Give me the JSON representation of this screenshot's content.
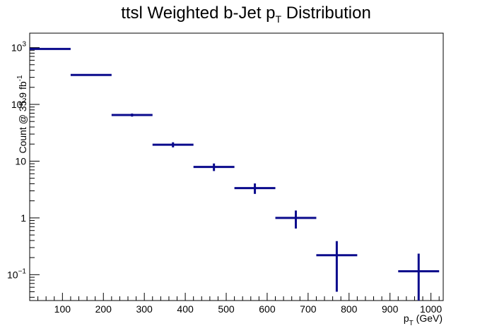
{
  "chart_data": {
    "type": "scatter",
    "title": "ttsl Weighted b-Jet p",
    "title_sub": "T",
    "title_tail": " Distribution",
    "xlabel": "p",
    "xlabel_sub": "T",
    "xlabel_tail": " (GeV)",
    "ylabel": "Count @ 35.9 fb",
    "ylabel_sup": "-1",
    "xlim": [
      20,
      1030
    ],
    "ylim": [
      0.035,
      1800
    ],
    "y_scale": "log",
    "grid": false,
    "legend": "none",
    "color": "#0a0a8c",
    "x_ticks": [
      100,
      200,
      300,
      400,
      500,
      600,
      700,
      800,
      900,
      1000
    ],
    "y_ticks": [
      {
        "value": 0.1,
        "base": "10",
        "exp": "−1"
      },
      {
        "value": 1,
        "base": "1",
        "exp": ""
      },
      {
        "value": 10,
        "base": "10",
        "exp": ""
      },
      {
        "value": 100,
        "base": "10",
        "exp": "2"
      },
      {
        "value": 1000,
        "base": "10",
        "exp": "3"
      }
    ],
    "points": [
      {
        "x": 70,
        "x_lo": 20,
        "x_hi": 120,
        "y": 950,
        "y_err": 20
      },
      {
        "x": 170,
        "x_lo": 120,
        "x_hi": 220,
        "y": 330,
        "y_err": 8
      },
      {
        "x": 270,
        "x_lo": 220,
        "x_hi": 320,
        "y": 65,
        "y_err": 4
      },
      {
        "x": 370,
        "x_lo": 320,
        "x_hi": 420,
        "y": 19.5,
        "y_err": 2
      },
      {
        "x": 470,
        "x_lo": 420,
        "x_hi": 520,
        "y": 7.9,
        "y_err": 1.2
      },
      {
        "x": 570,
        "x_lo": 520,
        "x_hi": 620,
        "y": 3.35,
        "y_err": 0.7
      },
      {
        "x": 670,
        "x_lo": 620,
        "x_hi": 720,
        "y": 1.0,
        "y_err": 0.35
      },
      {
        "x": 770,
        "x_lo": 720,
        "x_hi": 820,
        "y": 0.22,
        "y_err": 0.17
      },
      {
        "x": 970,
        "x_lo": 920,
        "x_hi": 1020,
        "y": 0.115,
        "y_err": 0.12
      }
    ]
  }
}
